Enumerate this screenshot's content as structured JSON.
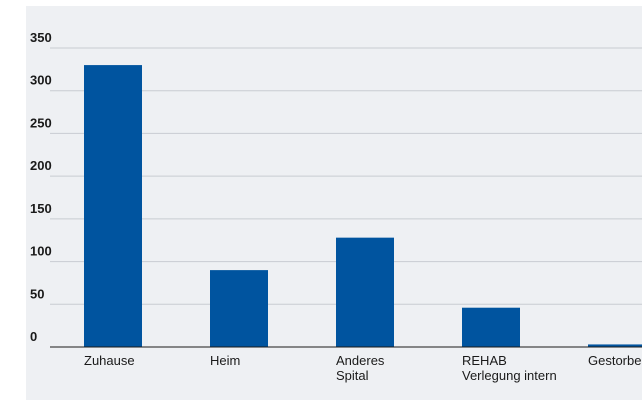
{
  "chart_data": {
    "type": "bar",
    "title": "",
    "xlabel": "",
    "ylabel": "",
    "categories": [
      [
        "Zuhause"
      ],
      [
        "Heim"
      ],
      [
        "Anderes",
        "Spital"
      ],
      [
        "REHAB",
        "Verlegung intern"
      ],
      [
        "Gestorben"
      ]
    ],
    "values": [
      330,
      90,
      128,
      46,
      3
    ],
    "ylim": [
      0,
      350
    ],
    "yticks": [
      0,
      50,
      100,
      150,
      200,
      250,
      300,
      350
    ],
    "grid": true,
    "legend": "none",
    "colors": {
      "bar": "#00549F",
      "panel": "#EEF0F3",
      "grid": "#C8CCD2",
      "axis": "#1a1a1a"
    }
  }
}
